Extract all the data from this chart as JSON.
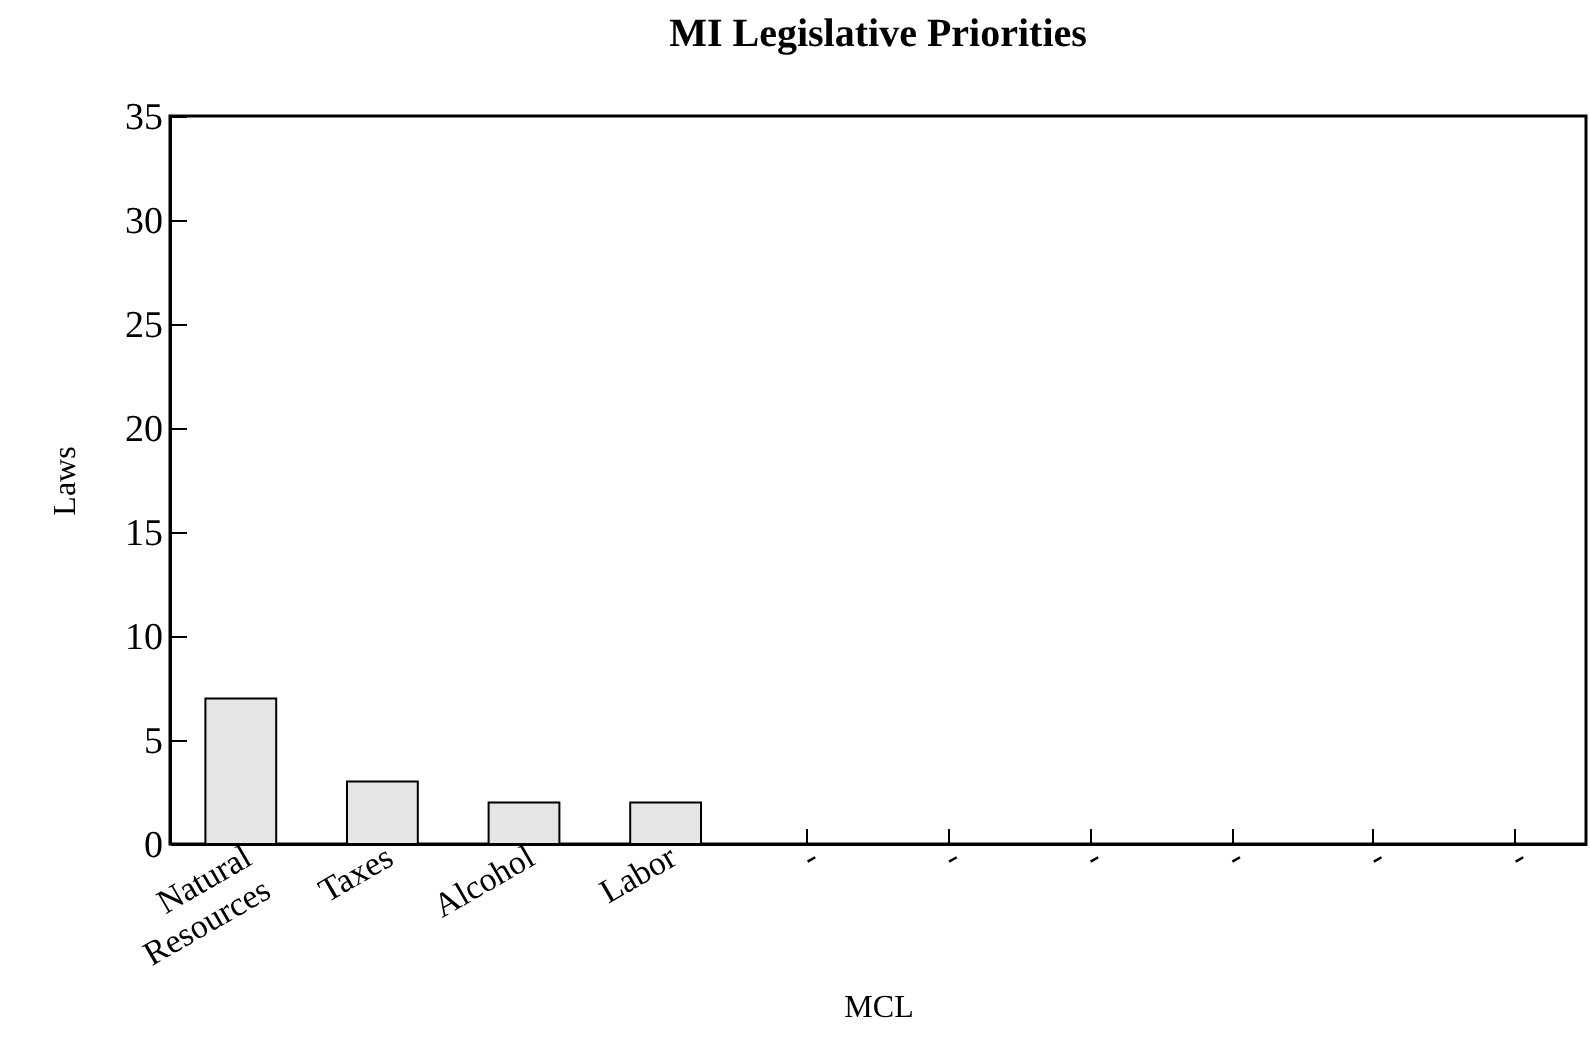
{
  "chart_data": {
    "type": "bar",
    "title": "MI Legislative Priorities",
    "xlabel": "MCL",
    "ylabel": "Laws",
    "categories": [
      "Natural Resources",
      "Taxes",
      "Alcohol",
      "Labor",
      "-",
      "-",
      "-",
      "-",
      "-",
      "-"
    ],
    "values": [
      7,
      3,
      2,
      2,
      null,
      null,
      null,
      null,
      null,
      null
    ],
    "color": "#e5e5e5",
    "ylim": [
      0,
      35
    ],
    "yticks": [
      0,
      5,
      10,
      15,
      20,
      25,
      30,
      35
    ],
    "grid": false
  }
}
